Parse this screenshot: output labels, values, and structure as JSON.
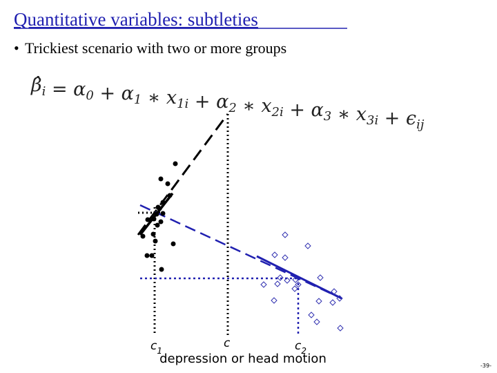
{
  "header": {
    "title": "Quantitative variables: subtleties"
  },
  "bullet": "Trickiest scenario with two or more groups",
  "equation": [
    {
      "base": "β̂",
      "sub": "i"
    },
    {
      "base": " = α",
      "sub": "0"
    },
    {
      "base": " + α",
      "sub": "1"
    },
    {
      "base": " ∗ x",
      "sub": "1i"
    },
    {
      "base": " + α",
      "sub": "2"
    },
    {
      "base": " ∗ x",
      "sub": "2i"
    },
    {
      "base": " + α",
      "sub": "3"
    },
    {
      "base": " ∗ x",
      "sub": "3i"
    },
    {
      "base": " + ϵ",
      "sub": "ij"
    }
  ],
  "diagram": {
    "markers": [
      {
        "base": "c",
        "sub": "1"
      },
      {
        "base": "c"
      },
      {
        "base": "c",
        "sub": "2"
      }
    ],
    "xlabel": "depression or head motion"
  },
  "page_number": "-39-"
}
